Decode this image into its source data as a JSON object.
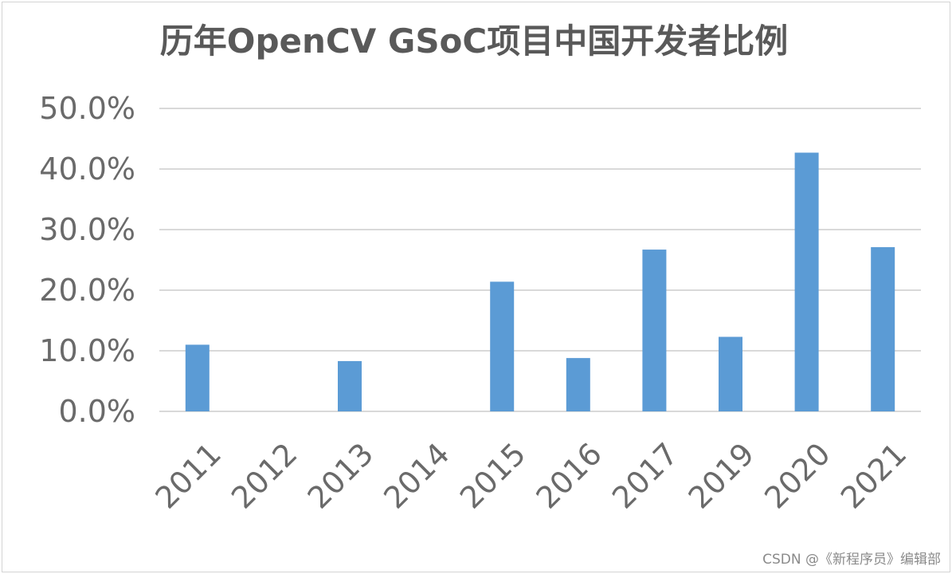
{
  "chart_data": {
    "type": "bar",
    "title": "历年OpenCV GSoC项目中国开发者比例",
    "xlabel": "",
    "ylabel": "",
    "categories": [
      "2011",
      "2012",
      "2013",
      "2014",
      "2015",
      "2016",
      "2017",
      "2019",
      "2020",
      "2021"
    ],
    "values": [
      11.0,
      0,
      8.3,
      0,
      21.4,
      8.8,
      26.7,
      12.3,
      42.7,
      27.1
    ],
    "ylim": [
      0,
      50
    ],
    "yticks": [
      "0.0%",
      "10.0%",
      "20.0%",
      "30.0%",
      "40.0%",
      "50.0%"
    ],
    "grid": true,
    "legend": "none",
    "bar_color": "#5b9bd5"
  },
  "watermark": "CSDN @《新程序员》编辑部"
}
